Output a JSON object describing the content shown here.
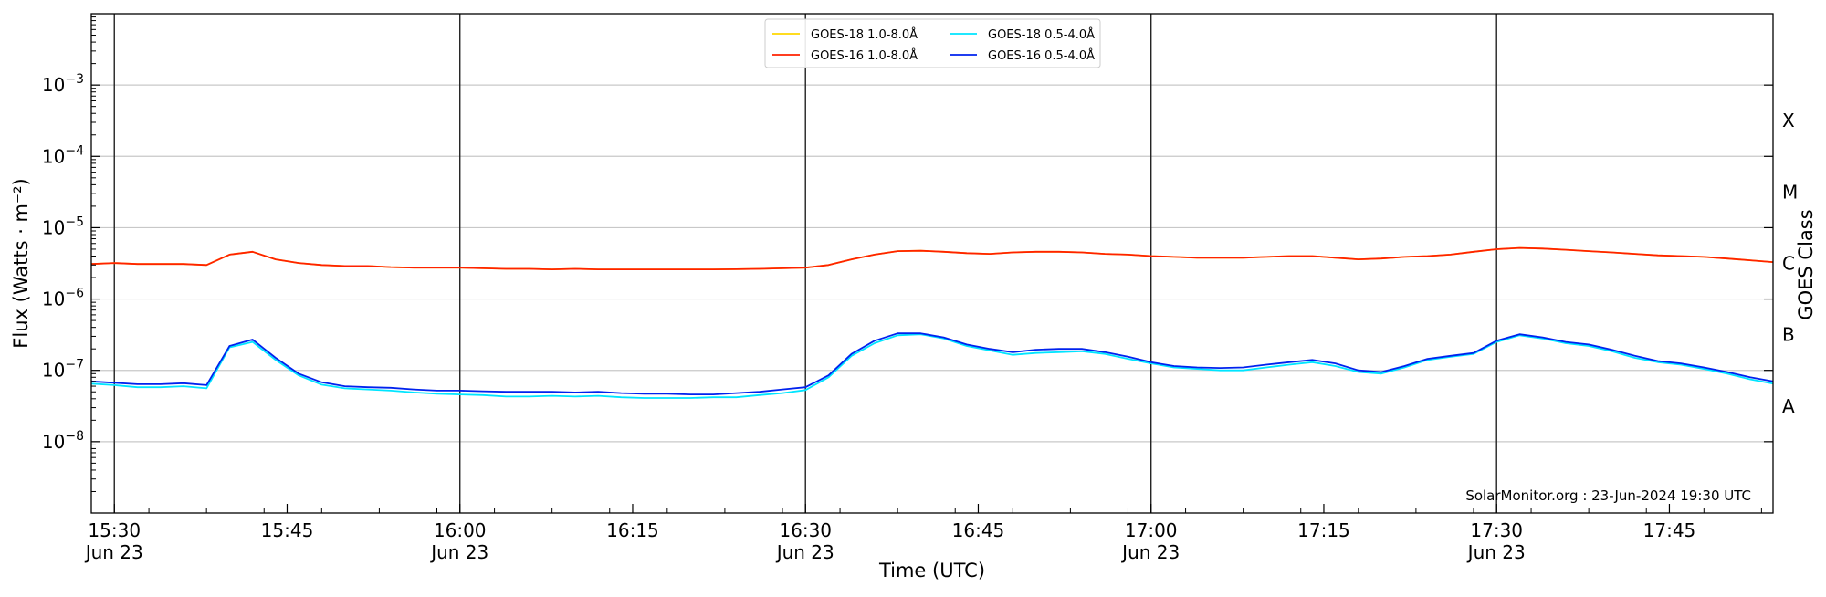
{
  "chart_data": {
    "type": "line",
    "title": "",
    "xlabel": "Time (UTC)",
    "ylabel": "Flux (Watts · m⁻²)",
    "y2label": "GOES Class",
    "yscale": "log",
    "ylim": [
      1e-09,
      0.01
    ],
    "xlim": [
      "15:28",
      "17:54"
    ],
    "x_ticks": [
      {
        "time": "15:30",
        "label": "15:30",
        "date": "Jun 23"
      },
      {
        "time": "15:45",
        "label": "15:45",
        "date": ""
      },
      {
        "time": "16:00",
        "label": "16:00",
        "date": "Jun 23"
      },
      {
        "time": "16:15",
        "label": "16:15",
        "date": ""
      },
      {
        "time": "16:30",
        "label": "16:30",
        "date": "Jun 23"
      },
      {
        "time": "16:45",
        "label": "16:45",
        "date": ""
      },
      {
        "time": "17:00",
        "label": "17:00",
        "date": "Jun 23"
      },
      {
        "time": "17:15",
        "label": "17:15",
        "date": ""
      },
      {
        "time": "17:30",
        "label": "17:30",
        "date": "Jun 23"
      },
      {
        "time": "17:45",
        "label": "17:45",
        "date": ""
      }
    ],
    "y_ticks": [
      {
        "value": 1e-08,
        "base": "10",
        "exp": "−8"
      },
      {
        "value": 1e-07,
        "base": "10",
        "exp": "−7"
      },
      {
        "value": 1e-06,
        "base": "10",
        "exp": "−6"
      },
      {
        "value": 1e-05,
        "base": "10",
        "exp": "−5"
      },
      {
        "value": 0.0001,
        "base": "10",
        "exp": "−4"
      },
      {
        "value": 0.001,
        "base": "10",
        "exp": "−3"
      }
    ],
    "goes_classes": [
      {
        "label": "A",
        "value": 3.16e-08
      },
      {
        "label": "B",
        "value": 3.16e-07
      },
      {
        "label": "C",
        "value": 3.16e-06
      },
      {
        "label": "M",
        "value": 3.16e-05
      },
      {
        "label": "X",
        "value": 0.000316
      }
    ],
    "vlines": [
      "15:30",
      "16:00",
      "16:30",
      "17:00",
      "17:30"
    ],
    "grid": "horizontal",
    "legend_position": "top-center",
    "annotation": "SolarMonitor.org : 23-Jun-2024 19:30 UTC",
    "x": [
      "15:28",
      "15:30",
      "15:32",
      "15:34",
      "15:36",
      "15:38",
      "15:40",
      "15:42",
      "15:44",
      "15:46",
      "15:48",
      "15:50",
      "15:52",
      "15:54",
      "15:56",
      "15:58",
      "16:00",
      "16:02",
      "16:04",
      "16:06",
      "16:08",
      "16:10",
      "16:12",
      "16:14",
      "16:16",
      "16:18",
      "16:20",
      "16:22",
      "16:24",
      "16:26",
      "16:28",
      "16:30",
      "16:32",
      "16:34",
      "16:36",
      "16:38",
      "16:40",
      "16:42",
      "16:44",
      "16:46",
      "16:48",
      "16:50",
      "16:52",
      "16:54",
      "16:56",
      "16:58",
      "17:00",
      "17:02",
      "17:04",
      "17:06",
      "17:08",
      "17:10",
      "17:12",
      "17:14",
      "17:16",
      "17:18",
      "17:20",
      "17:22",
      "17:24",
      "17:26",
      "17:28",
      "17:30",
      "17:32",
      "17:34",
      "17:36",
      "17:38",
      "17:40",
      "17:42",
      "17:44",
      "17:46",
      "17:48",
      "17:50",
      "17:52",
      "17:54"
    ],
    "series": [
      {
        "name": "GOES-18 1.0-8.0Å",
        "color": "#ffd700",
        "values": [
          3.1e-06,
          3.2e-06,
          3.1e-06,
          3.1e-06,
          3.1e-06,
          3e-06,
          4.2e-06,
          4.6e-06,
          3.6e-06,
          3.2e-06,
          3e-06,
          2.9e-06,
          2.9e-06,
          2.8e-06,
          2.75e-06,
          2.75e-06,
          2.75e-06,
          2.7e-06,
          2.65e-06,
          2.65e-06,
          2.6e-06,
          2.65e-06,
          2.6e-06,
          2.6e-06,
          2.6e-06,
          2.6e-06,
          2.6e-06,
          2.6e-06,
          2.62e-06,
          2.65e-06,
          2.7e-06,
          2.75e-06,
          3e-06,
          3.6e-06,
          4.2e-06,
          4.7e-06,
          4.75e-06,
          4.6e-06,
          4.4e-06,
          4.3e-06,
          4.5e-06,
          4.6e-06,
          4.6e-06,
          4.5e-06,
          4.3e-06,
          4.2e-06,
          4e-06,
          3.9e-06,
          3.8e-06,
          3.8e-06,
          3.8e-06,
          3.9e-06,
          4e-06,
          4e-06,
          3.8e-06,
          3.6e-06,
          3.7e-06,
          3.9e-06,
          4e-06,
          4.2e-06,
          4.6e-06,
          5e-06,
          5.2e-06,
          5.1e-06,
          4.9e-06,
          4.7e-06,
          4.5e-06,
          4.3e-06,
          4.1e-06,
          4e-06,
          3.9e-06,
          3.7e-06,
          3.5e-06,
          3.3e-06
        ]
      },
      {
        "name": "GOES-16 1.0-8.0Å",
        "color": "#ff2200",
        "values": [
          3.1e-06,
          3.2e-06,
          3.1e-06,
          3.1e-06,
          3.1e-06,
          3e-06,
          4.2e-06,
          4.6e-06,
          3.6e-06,
          3.2e-06,
          3e-06,
          2.9e-06,
          2.9e-06,
          2.8e-06,
          2.75e-06,
          2.75e-06,
          2.75e-06,
          2.7e-06,
          2.65e-06,
          2.65e-06,
          2.6e-06,
          2.65e-06,
          2.6e-06,
          2.6e-06,
          2.6e-06,
          2.6e-06,
          2.6e-06,
          2.6e-06,
          2.62e-06,
          2.65e-06,
          2.7e-06,
          2.75e-06,
          3e-06,
          3.6e-06,
          4.2e-06,
          4.7e-06,
          4.75e-06,
          4.6e-06,
          4.4e-06,
          4.3e-06,
          4.5e-06,
          4.6e-06,
          4.6e-06,
          4.5e-06,
          4.3e-06,
          4.2e-06,
          4e-06,
          3.9e-06,
          3.8e-06,
          3.8e-06,
          3.8e-06,
          3.9e-06,
          4e-06,
          4e-06,
          3.8e-06,
          3.6e-06,
          3.7e-06,
          3.9e-06,
          4e-06,
          4.2e-06,
          4.6e-06,
          5e-06,
          5.2e-06,
          5.1e-06,
          4.9e-06,
          4.7e-06,
          4.5e-06,
          4.3e-06,
          4.1e-06,
          4e-06,
          3.9e-06,
          3.7e-06,
          3.5e-06,
          3.3e-06
        ]
      },
      {
        "name": "GOES-18 0.5-4.0Å",
        "color": "#00e5ff",
        "values": [
          6.5e-08,
          6.2e-08,
          5.8e-08,
          5.8e-08,
          6e-08,
          5.6e-08,
          2.1e-07,
          2.5e-07,
          1.4e-07,
          8.5e-08,
          6.3e-08,
          5.6e-08,
          5.4e-08,
          5.2e-08,
          4.9e-08,
          4.7e-08,
          4.6e-08,
          4.5e-08,
          4.3e-08,
          4.3e-08,
          4.4e-08,
          4.3e-08,
          4.4e-08,
          4.2e-08,
          4.1e-08,
          4.1e-08,
          4.1e-08,
          4.2e-08,
          4.2e-08,
          4.5e-08,
          4.8e-08,
          5.3e-08,
          8e-08,
          1.6e-07,
          2.4e-07,
          3.1e-07,
          3.2e-07,
          2.8e-07,
          2.2e-07,
          1.9e-07,
          1.65e-07,
          1.75e-07,
          1.8e-07,
          1.85e-07,
          1.7e-07,
          1.45e-07,
          1.25e-07,
          1.1e-07,
          1.05e-07,
          1e-07,
          1e-07,
          1.1e-07,
          1.2e-07,
          1.3e-07,
          1.15e-07,
          9.5e-08,
          9e-08,
          1.1e-07,
          1.4e-07,
          1.55e-07,
          1.7e-07,
          2.5e-07,
          3.1e-07,
          2.8e-07,
          2.4e-07,
          2.2e-07,
          1.85e-07,
          1.5e-07,
          1.3e-07,
          1.2e-07,
          1.05e-07,
          9e-08,
          7.5e-08,
          6.5e-08
        ]
      },
      {
        "name": "GOES-16 0.5-4.0Å",
        "color": "#0022ee",
        "values": [
          7e-08,
          6.7e-08,
          6.4e-08,
          6.4e-08,
          6.6e-08,
          6.2e-08,
          2.2e-07,
          2.7e-07,
          1.5e-07,
          9e-08,
          6.8e-08,
          6e-08,
          5.8e-08,
          5.7e-08,
          5.4e-08,
          5.2e-08,
          5.2e-08,
          5.1e-08,
          5e-08,
          5e-08,
          5e-08,
          4.9e-08,
          5e-08,
          4.8e-08,
          4.7e-08,
          4.7e-08,
          4.6e-08,
          4.6e-08,
          4.8e-08,
          5e-08,
          5.4e-08,
          5.8e-08,
          8.5e-08,
          1.7e-07,
          2.6e-07,
          3.3e-07,
          3.3e-07,
          2.9e-07,
          2.3e-07,
          2e-07,
          1.8e-07,
          1.95e-07,
          2e-07,
          2e-07,
          1.8e-07,
          1.55e-07,
          1.3e-07,
          1.15e-07,
          1.1e-07,
          1.08e-07,
          1.1e-07,
          1.2e-07,
          1.3e-07,
          1.4e-07,
          1.25e-07,
          1e-07,
          9.5e-08,
          1.15e-07,
          1.45e-07,
          1.6e-07,
          1.75e-07,
          2.6e-07,
          3.2e-07,
          2.9e-07,
          2.5e-07,
          2.3e-07,
          1.95e-07,
          1.6e-07,
          1.35e-07,
          1.25e-07,
          1.1e-07,
          9.5e-08,
          8e-08,
          7e-08
        ]
      }
    ]
  }
}
